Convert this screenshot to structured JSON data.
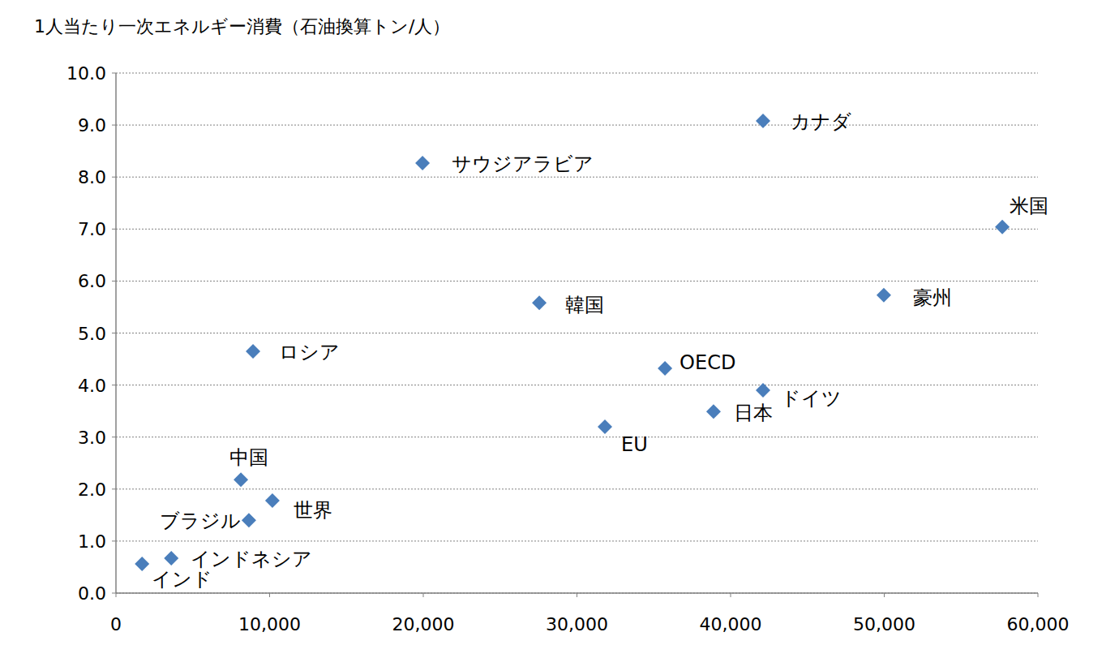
{
  "chart_data": {
    "type": "scatter",
    "title": "1人当たり一次エネルギー消費（石油換算トン/人）",
    "labels": [
      "インド",
      "インドネシア",
      "ブラジル",
      "中国",
      "世界",
      "ロシア",
      "サウジアラビア",
      "韓国",
      "EU",
      "OECD",
      "日本",
      "ドイツ",
      "カナダ",
      "豪州",
      "米国"
    ],
    "x": [
      1700,
      3600,
      8650,
      8130,
      10180,
      8920,
      19950,
      27550,
      31820,
      35730,
      38890,
      42110,
      42110,
      49970,
      57680
    ],
    "values": [
      0.56,
      0.67,
      1.4,
      2.18,
      1.78,
      4.65,
      8.27,
      5.58,
      3.2,
      4.32,
      3.49,
      3.9,
      9.08,
      5.73,
      7.04
    ],
    "color": "#4a7ebb",
    "marker": "diamond",
    "xlim": [
      0,
      60000
    ],
    "ylim": [
      0,
      10
    ],
    "xticks": [
      0,
      {
        "value": 10000,
        "label": "10,000"
      },
      {
        "value": 20000,
        "label": "20,000"
      },
      {
        "value": 30000,
        "label": "30,000"
      },
      {
        "value": 40000,
        "label": "40,000"
      },
      {
        "value": 50000,
        "label": "50,000"
      },
      {
        "value": 60000,
        "label": "60,000"
      }
    ],
    "yticks": [
      {
        "value": 0,
        "label": "0.0"
      },
      {
        "value": 1,
        "label": "1.0"
      },
      {
        "value": 2,
        "label": "2.0"
      },
      {
        "value": 3,
        "label": "3.0"
      },
      {
        "value": 4,
        "label": "4.0"
      },
      {
        "value": 5,
        "label": "5.0"
      },
      {
        "value": 6,
        "label": "6.0"
      },
      {
        "value": 7,
        "label": "7.0"
      },
      {
        "value": 8,
        "label": "8.0"
      },
      {
        "value": 9,
        "label": "9.0"
      },
      {
        "value": 10,
        "label": "10.0"
      }
    ],
    "grid": true
  }
}
